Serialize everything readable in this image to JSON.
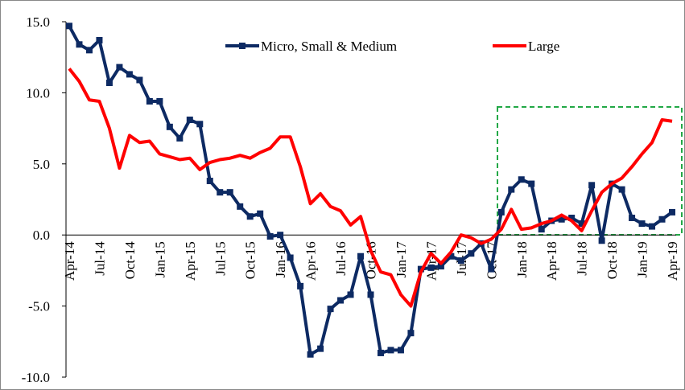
{
  "chart_data": {
    "type": "line",
    "categories": [
      "Apr-14",
      null,
      null,
      "Jul-14",
      null,
      null,
      "Oct-14",
      null,
      null,
      "Jan-15",
      null,
      null,
      "Apr-15",
      null,
      null,
      "Jul-15",
      null,
      null,
      "Oct-15",
      null,
      null,
      "Jan-16",
      null,
      null,
      "Apr-16",
      null,
      null,
      "Jul-16",
      null,
      null,
      "Oct-16",
      null,
      null,
      "Jan-17",
      null,
      null,
      "Apr-17",
      null,
      null,
      "Jul-17",
      null,
      null,
      "Oct-17",
      null,
      null,
      "Jan-18",
      null,
      null,
      "Apr-18",
      null,
      null,
      "Jul-18",
      null,
      null,
      "Oct-18",
      null,
      null,
      "Jan-19",
      null,
      null,
      "Apr-19"
    ],
    "series": [
      {
        "name": "Micro, Small & Medium",
        "color": "#0d2a63",
        "marker": "square",
        "values": [
          14.7,
          13.4,
          13.0,
          13.7,
          10.7,
          11.8,
          11.3,
          10.9,
          9.4,
          9.4,
          7.6,
          6.8,
          8.1,
          7.8,
          3.8,
          3.0,
          3.0,
          2.0,
          1.3,
          1.5,
          -0.1,
          0.0,
          -1.6,
          -3.6,
          -8.4,
          -8.0,
          -5.2,
          -4.6,
          -4.2,
          -1.5,
          -4.2,
          -8.3,
          -8.1,
          -8.1,
          -6.9,
          -2.4,
          -2.3,
          -2.2,
          -1.5,
          -1.8,
          -1.3,
          -0.6,
          -2.4,
          1.6,
          3.2,
          3.9,
          3.6,
          0.4,
          1.0,
          1.1,
          1.2,
          0.8,
          3.5,
          -0.4,
          3.6,
          3.2,
          1.2,
          0.8,
          0.6,
          1.1,
          1.6
        ]
      },
      {
        "name": "Large",
        "color": "#ff0000",
        "marker": "none",
        "values": [
          11.7,
          10.8,
          9.5,
          9.4,
          7.5,
          4.7,
          7.0,
          6.5,
          6.6,
          5.7,
          5.5,
          5.3,
          5.4,
          4.6,
          5.1,
          5.3,
          5.4,
          5.6,
          5.4,
          5.8,
          6.1,
          6.9,
          6.9,
          4.8,
          2.2,
          2.9,
          2.0,
          1.7,
          0.7,
          1.3,
          -1.1,
          -2.6,
          -2.8,
          -4.2,
          -5.0,
          -2.6,
          -1.3,
          -2.0,
          -1.2,
          0.0,
          -0.2,
          -0.6,
          -0.3,
          0.4,
          1.8,
          0.4,
          0.5,
          0.8,
          1.0,
          1.4,
          1.0,
          0.3,
          1.7,
          3.0,
          3.6,
          4.0,
          4.8,
          5.7,
          6.5,
          8.1,
          8.0
        ]
      }
    ],
    "ylim": [
      -10,
      15
    ],
    "yticks": [
      {
        "value": -10,
        "label": "-10.0"
      },
      {
        "value": -5,
        "label": "-5.0"
      },
      {
        "value": 0,
        "label": "0.0"
      },
      {
        "value": 5,
        "label": "5.0"
      },
      {
        "value": 10,
        "label": "10.0"
      },
      {
        "value": 15,
        "label": "15.0"
      }
    ],
    "grid": false,
    "legend": "top"
  }
}
